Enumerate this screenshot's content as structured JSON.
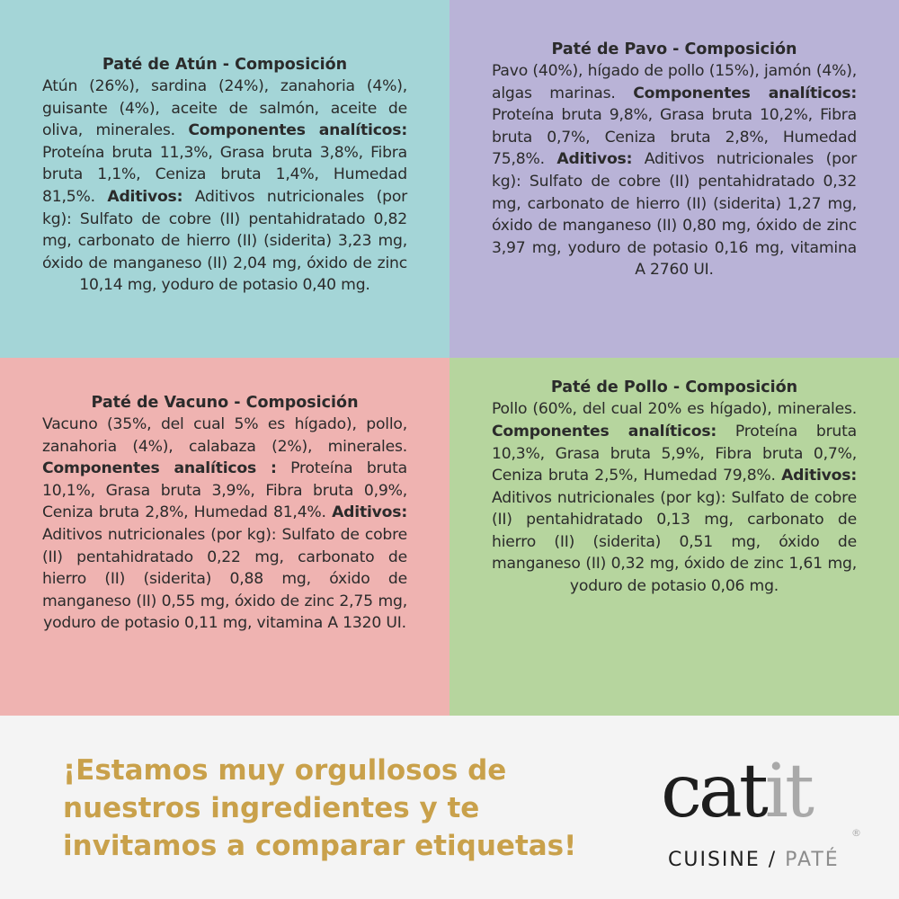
{
  "panels": [
    {
      "title": "Paté de Atún - Composición",
      "color": "#a4d5d7",
      "segments": [
        {
          "text": "Atún (26%), sardina (24%), zanahoria (4%), guisante (4%), aceite de salmón, aceite de oliva, minerales. ",
          "bold": false
        },
        {
          "text": "Componentes analíticos:",
          "bold": true
        },
        {
          "text": " Proteína bruta 11,3%, Grasa bruta 3,8%, Fibra bruta 1,1%, Ceniza bruta 1,4%, Humedad 81,5%. ",
          "bold": false
        },
        {
          "text": "Aditivos:",
          "bold": true
        },
        {
          "text": " Aditivos nutricionales (por kg): Sulfato de cobre (II) pentahidratado 0,82 mg, carbonato de hierro (II) (siderita) 3,23 mg, óxido de manganeso (II) 2,04 mg, óxido de zinc 10,14 mg, yoduro de potasio 0,40 mg.",
          "bold": false
        }
      ]
    },
    {
      "title": "Paté de Pavo - Composición",
      "color": "#b9b3d7",
      "segments": [
        {
          "text": "Pavo (40%), hígado de pollo (15%), jamón (4%), algas marinas. ",
          "bold": false
        },
        {
          "text": "Componentes analíticos:",
          "bold": true
        },
        {
          "text": " Proteína bruta 9,8%, Grasa bruta 10,2%, Fibra bruta 0,7%, Ceniza bruta 2,8%, Humedad 75,8%. ",
          "bold": false
        },
        {
          "text": "Aditivos:",
          "bold": true
        },
        {
          "text": " Aditivos nutricionales (por kg): Sulfato de cobre (II) pentahidratado 0,32 mg, carbonato de hierro (II) (siderita) 1,27 mg, óxido de manganeso (II) 0,80 mg, óxido de zinc 3,97 mg, yoduro de potasio 0,16 mg, vitamina A 2760 UI.",
          "bold": false
        }
      ]
    },
    {
      "title": "Paté de Vacuno - Composición",
      "color": "#efb3b1",
      "segments": [
        {
          "text": "Vacuno (35%, del cual 5% es hígado), pollo, zanahoria (4%), calabaza (2%), minerales. ",
          "bold": false
        },
        {
          "text": "Componentes analíticos :",
          "bold": true
        },
        {
          "text": " Proteína bruta 10,1%, Grasa bruta 3,9%, Fibra bruta 0,9%, Ceniza bruta 2,8%, Humedad 81,4%. ",
          "bold": false
        },
        {
          "text": "Aditivos:",
          "bold": true
        },
        {
          "text": " Aditivos nutricionales (por kg): Sulfato de cobre (II) pentahidratado 0,22 mg, carbonato de hierro (II) (siderita) 0,88 mg, óxido de manganeso (II) 0,55 mg, óxido de zinc 2,75 mg, yoduro de potasio 0,11 mg, vitamina A 1320 UI.",
          "bold": false
        }
      ]
    },
    {
      "title": "Paté de Pollo - Composición",
      "color": "#b6d59e",
      "segments": [
        {
          "text": "Pollo (60%, del cual 20% es hígado), minerales. ",
          "bold": false
        },
        {
          "text": "Componentes analíticos:",
          "bold": true
        },
        {
          "text": " Proteína bruta 10,3%, Grasa bruta 5,9%, Fibra bruta 0,7%, Ceniza bruta 2,5%, Humedad 79,8%. ",
          "bold": false
        },
        {
          "text": "Aditivos:",
          "bold": true
        },
        {
          "text": " Aditivos nutricionales (por kg): Sulfato de cobre (II) pentahidratado 0,13 mg, carbonato de hierro (II) (siderita) 0,51 mg, óxido de manganeso (II) 0,32 mg, óxido de zinc 1,61 mg, yoduro de potasio 0,06 mg.",
          "bold": false
        }
      ]
    }
  ],
  "tagline": {
    "lines": [
      "¡Estamos muy orgullosos de",
      "nuestros ingredientes y te",
      "invitamos a comparar etiquetas!"
    ],
    "color": "#c9a14b"
  },
  "logo": {
    "brand_dark": "cat",
    "brand_light": "it",
    "registered": "®",
    "sub_dark": "CUISINE /",
    "sub_light": "PATÉ"
  }
}
